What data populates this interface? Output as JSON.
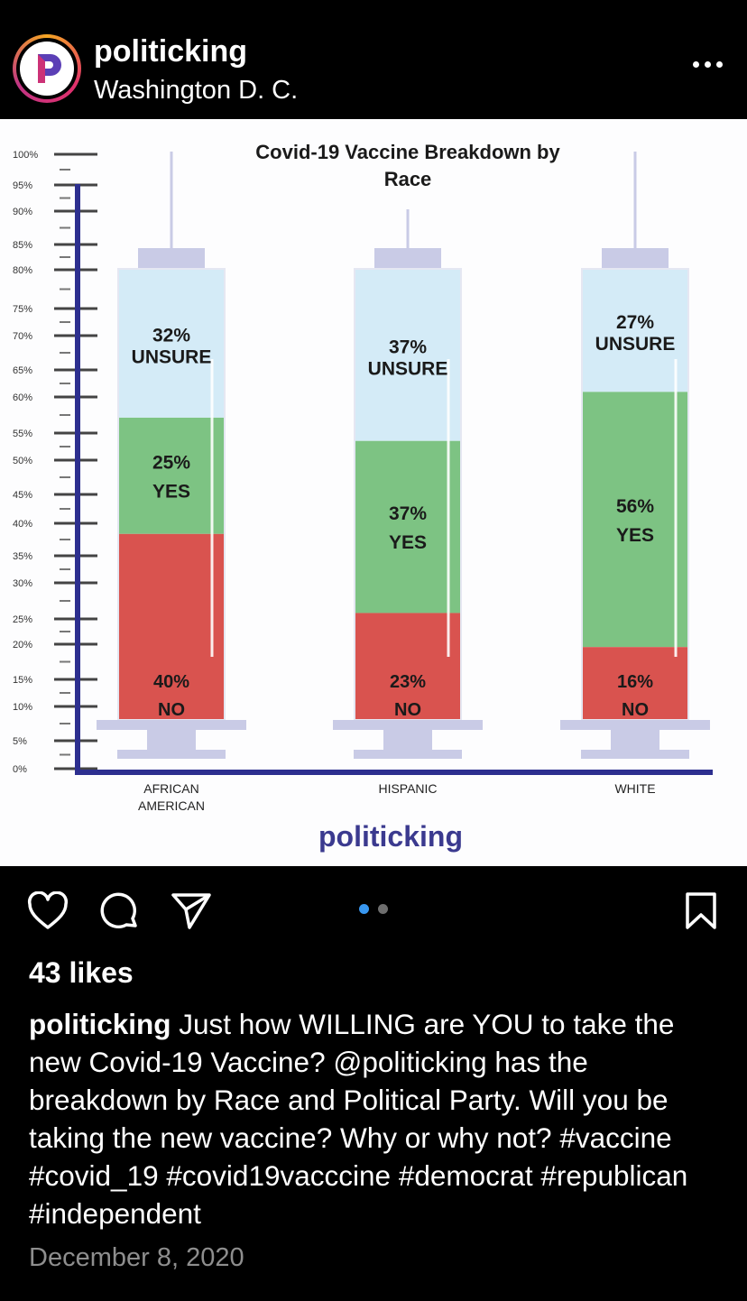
{
  "header": {
    "username": "politicking",
    "location": "Washington D. C."
  },
  "post": {
    "chart_data": {
      "type": "bar",
      "title_line1": "Covid-19 Vaccine Breakdown by",
      "title_line2": "Race",
      "ylim": [
        0,
        100
      ],
      "y_ticks": [
        "100%",
        "95%",
        "90%",
        "85%",
        "80%",
        "75%",
        "70%",
        "65%",
        "60%",
        "55%",
        "50%",
        "45%",
        "40%",
        "35%",
        "30%",
        "25%",
        "20%",
        "15%",
        "10%",
        "5%",
        "0%"
      ],
      "categories": [
        {
          "line1": "AFRICAN",
          "line2": "AMERICAN"
        },
        {
          "line1": "HISPANIC",
          "line2": ""
        },
        {
          "line1": "WHITE",
          "line2": ""
        }
      ],
      "series": [
        {
          "name": "NO",
          "values": [
            40,
            23,
            16
          ],
          "color": "#d9534f"
        },
        {
          "name": "YES",
          "values": [
            25,
            37,
            56
          ],
          "color": "#7dc383"
        },
        {
          "name": "UNSURE",
          "values": [
            32,
            37,
            27
          ],
          "color": "#d4ebf7"
        }
      ],
      "labels": {
        "no": [
          "40%",
          "23%",
          "16%"
        ],
        "yes": [
          "25%",
          "37%",
          "56%"
        ],
        "unsure": [
          "32%",
          "37%",
          "27%"
        ],
        "no_word": "NO",
        "yes_word": "YES",
        "unsure_word": "UNSURE"
      },
      "grid": false,
      "colors": {
        "axis": "#2d2f8f",
        "syringe": "#c9cbe6"
      }
    },
    "watermark": "politicking"
  },
  "pagination": {
    "count": 2,
    "active": 1,
    "active_color": "#3897f0",
    "inactive_color": "#6e6e6e"
  },
  "icons": [
    "heart-icon",
    "comment-icon",
    "share-icon",
    "bookmark-icon"
  ],
  "likes": "43 likes",
  "caption": {
    "username": "politicking",
    "text_1": " Just how WILLING are YOU to take the new Covid-19 Vaccine? ",
    "mention": "@politicking",
    "text_2": " has the breakdown by Race and Political Party. Will you be taking the new vaccine? Why or why not? ",
    "hashtags": [
      "#vaccine",
      "#covid_19",
      "#covid19vacccine",
      "#democrat",
      "#republican",
      "#independent"
    ]
  },
  "date": "December 8, 2020"
}
